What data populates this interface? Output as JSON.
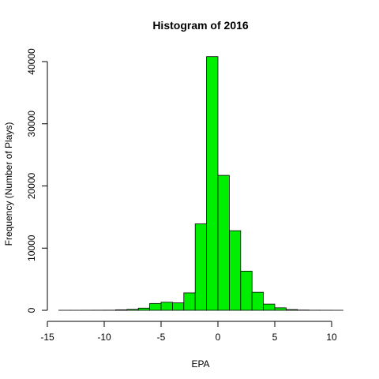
{
  "chart_data": {
    "type": "bar",
    "title": "Histogram of  2016",
    "xlabel": "EPA",
    "ylabel": "Frequency (Number of Plays)",
    "bar_color": "#00ee00",
    "bar_border_color": "#000000",
    "xlim": [
      -15,
      10
    ],
    "ylim": [
      0,
      40000
    ],
    "x_ticks": [
      -15,
      -10,
      -5,
      0,
      5,
      10
    ],
    "y_ticks": [
      0,
      10000,
      20000,
      30000,
      40000
    ],
    "bin_width": 1,
    "bins": [
      {
        "start": -14,
        "end": -13,
        "value": 5
      },
      {
        "start": -13,
        "end": -12,
        "value": 5
      },
      {
        "start": -12,
        "end": -11,
        "value": 10
      },
      {
        "start": -11,
        "end": -10,
        "value": 15
      },
      {
        "start": -10,
        "end": -9,
        "value": 20
      },
      {
        "start": -9,
        "end": -8,
        "value": 80
      },
      {
        "start": -8,
        "end": -7,
        "value": 150
      },
      {
        "start": -7,
        "end": -6,
        "value": 350
      },
      {
        "start": -6,
        "end": -5,
        "value": 1100
      },
      {
        "start": -5,
        "end": -4,
        "value": 1300
      },
      {
        "start": -4,
        "end": -3,
        "value": 1200
      },
      {
        "start": -3,
        "end": -2,
        "value": 2800
      },
      {
        "start": -2,
        "end": -1,
        "value": 13900
      },
      {
        "start": -1,
        "end": 0,
        "value": 40800
      },
      {
        "start": 0,
        "end": 1,
        "value": 21700
      },
      {
        "start": 1,
        "end": 2,
        "value": 12800
      },
      {
        "start": 2,
        "end": 3,
        "value": 6300
      },
      {
        "start": 3,
        "end": 4,
        "value": 2900
      },
      {
        "start": 4,
        "end": 5,
        "value": 1000
      },
      {
        "start": 5,
        "end": 6,
        "value": 400
      },
      {
        "start": 6,
        "end": 7,
        "value": 120
      },
      {
        "start": 7,
        "end": 8,
        "value": 40
      },
      {
        "start": 8,
        "end": 9,
        "value": 15
      },
      {
        "start": 9,
        "end": 10,
        "value": 10
      },
      {
        "start": 10,
        "end": 11,
        "value": 5
      }
    ]
  }
}
